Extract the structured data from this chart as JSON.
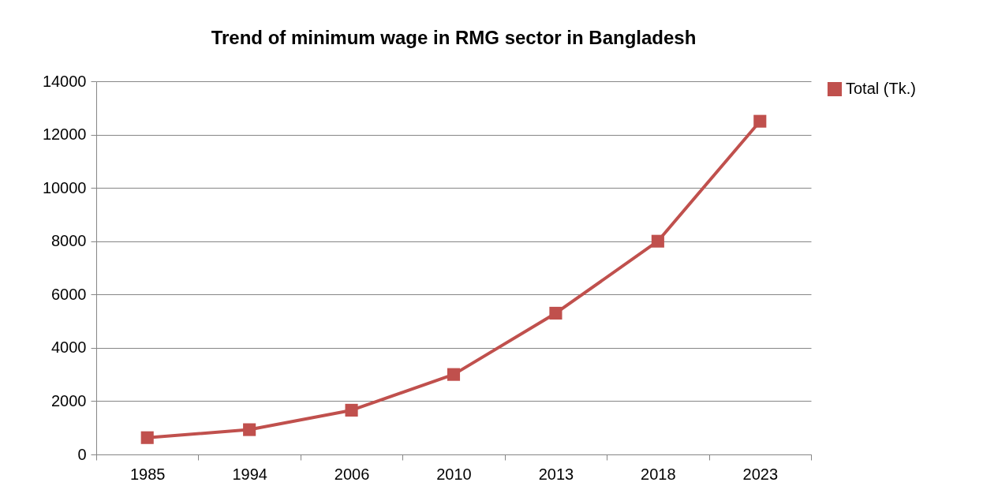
{
  "chart_data": {
    "type": "line",
    "title": "Trend of minimum wage in RMG sector in Bangladesh",
    "categories": [
      "1985",
      "1994",
      "2006",
      "2010",
      "2013",
      "2018",
      "2023"
    ],
    "series": [
      {
        "name": "Total (Tk.)",
        "color": "#c0504d",
        "values": [
          630,
          930,
          1660,
          3000,
          5300,
          8000,
          12500
        ]
      }
    ],
    "ylim": [
      0,
      14000
    ],
    "yticks": [
      0,
      2000,
      4000,
      6000,
      8000,
      10000,
      12000,
      14000
    ],
    "grid": "y",
    "legend": "right",
    "marker": "square",
    "line_style": "solid"
  }
}
